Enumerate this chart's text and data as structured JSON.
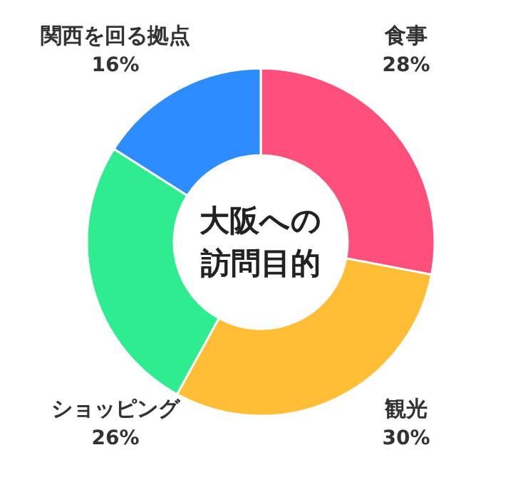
{
  "chart_data": {
    "type": "donut",
    "title": "大阪への訪問目的",
    "categories": [
      "食事",
      "観光",
      "ショッピング",
      "関西を回る拠点"
    ],
    "values": [
      28,
      30,
      26,
      16
    ],
    "value_labels": [
      "28%",
      "30%",
      "26%",
      "16%"
    ],
    "colors": [
      "#ff4f7b",
      "#ffbe35",
      "#2ded90",
      "#2d8cff"
    ]
  }
}
